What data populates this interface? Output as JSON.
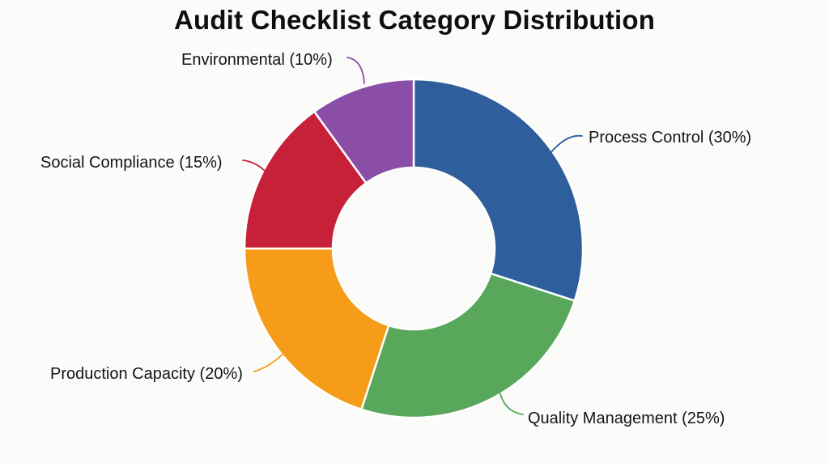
{
  "title": "Audit Checklist Category Distribution",
  "colors": {
    "background": "#fbfbf9",
    "title_text": "#0e0e0e",
    "label_text": "#141414",
    "segment_border": "#ffffff"
  },
  "chart_data": {
    "type": "pie",
    "donut": true,
    "title": "Audit Checklist Category Distribution",
    "start_angle_deg": 0,
    "direction": "clockwise",
    "inner_radius_ratio": 0.48,
    "legend_position": "none",
    "label_style": "external-callouts-with-leader-lines",
    "units": "%",
    "total": 100,
    "segments": [
      {
        "label": "Process Control",
        "value": 30,
        "display": "Process Control (30%)",
        "color": "#2e5e9c"
      },
      {
        "label": "Quality Management",
        "value": 25,
        "display": "Quality Management (25%)",
        "color": "#58a75a"
      },
      {
        "label": "Production Capacity",
        "value": 20,
        "display": "Production Capacity (20%)",
        "color": "#f69c18"
      },
      {
        "label": "Social Compliance",
        "value": 15,
        "display": "Social Compliance (15%)",
        "color": "#c72039"
      },
      {
        "label": "Environmental",
        "value": 10,
        "display": "Environmental (10%)",
        "color": "#8a4ea7"
      }
    ]
  }
}
